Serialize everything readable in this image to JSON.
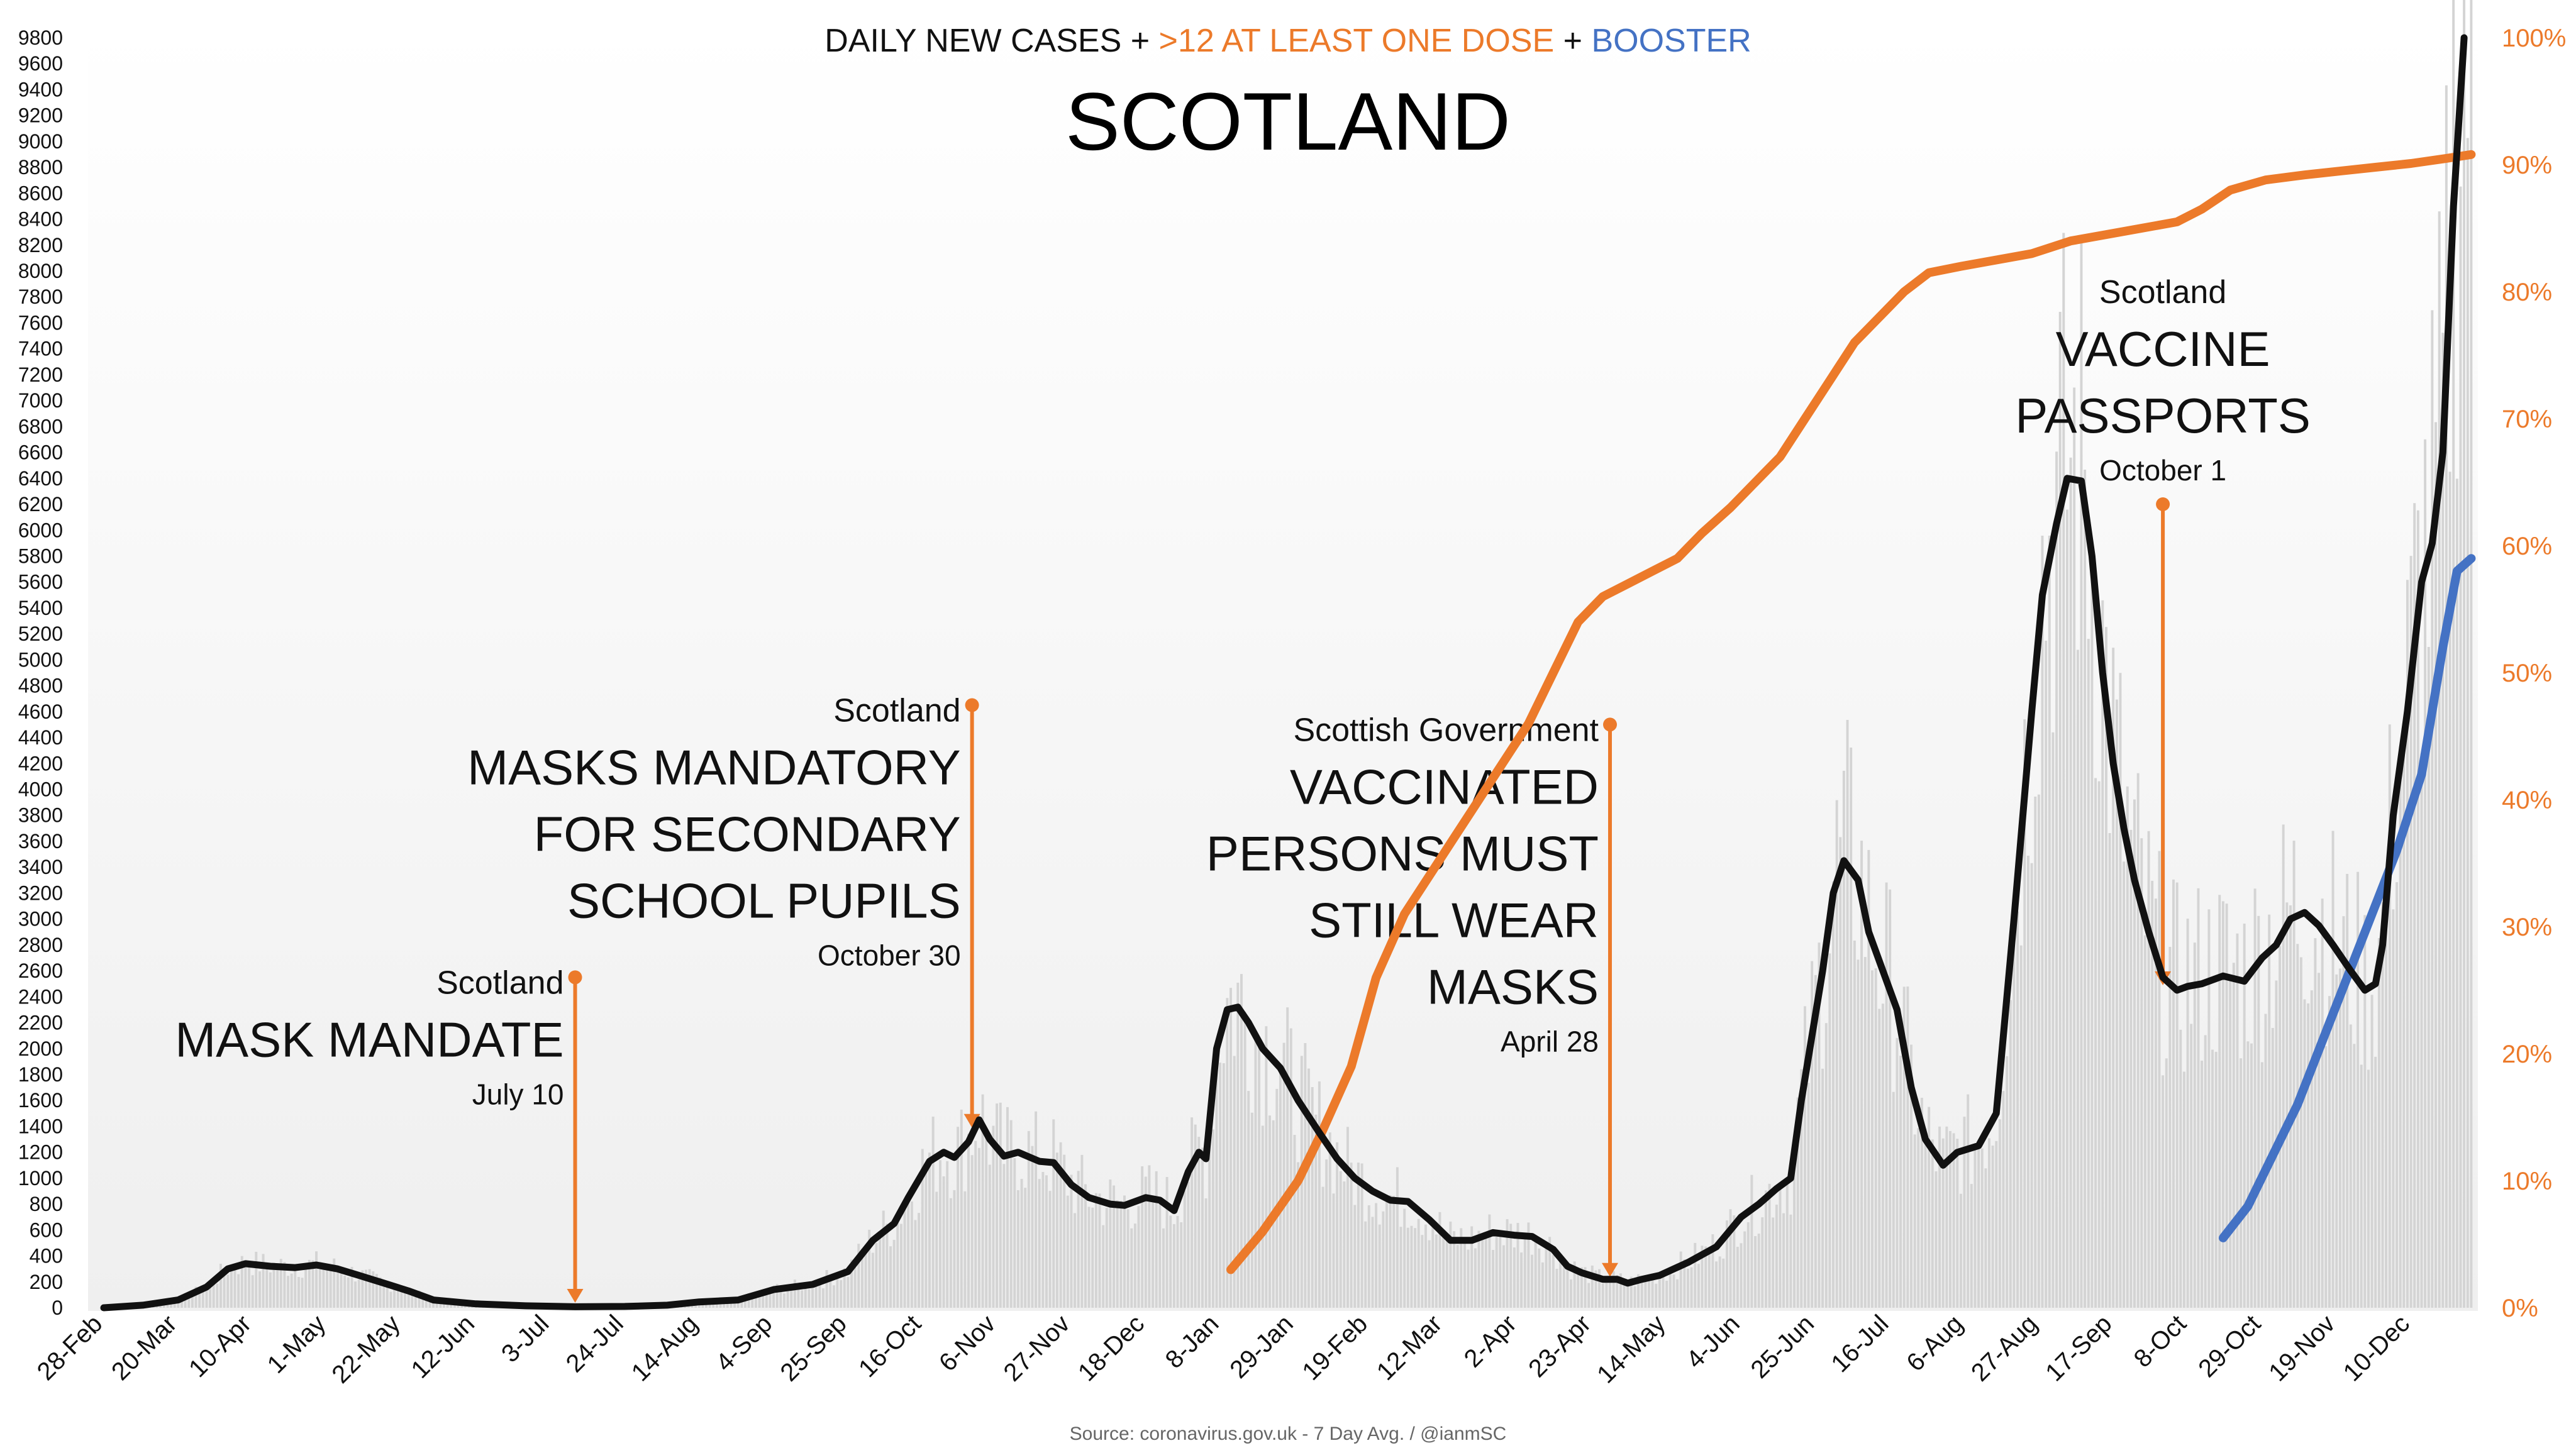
{
  "header": {
    "subtitle_parts": [
      {
        "text": "DAILY NEW CASES + ",
        "color": "#111111"
      },
      {
        "text": ">12 AT LEAST ONE DOSE",
        "color": "#ec7a2a"
      },
      {
        "text": " + ",
        "color": "#111111"
      },
      {
        "text": "BOOSTER",
        "color": "#4472c4"
      }
    ],
    "title": "SCOTLAND"
  },
  "source": "Source: coronavirus.gov.uk - 7 Day Avg. / @ianmSC",
  "colors": {
    "cases": "#111111",
    "first_dose": "#ec7a2a",
    "booster": "#4472c4",
    "daily_bars": "#d4d4d4",
    "annotation": "#ec7a2a",
    "right_axis_text": "#ec7a2a",
    "background_top": "#ffffff",
    "background_bottom": "#efefef"
  },
  "annotations": [
    {
      "source": "Scotland",
      "lines": [
        "MASK MANDATE"
      ],
      "date": "July 10",
      "x": "2020-07-10",
      "pointer_top": 2550,
      "pointer_bottom": 0
    },
    {
      "source": "Scotland",
      "lines": [
        "MASKS MANDATORY",
        "FOR SECONDARY",
        "SCHOOL PUPILS"
      ],
      "date": "October 30",
      "x": "2020-10-30",
      "pointer_top": 4650,
      "pointer_bottom": 1350
    },
    {
      "source": "Scottish Government",
      "lines": [
        "VACCINATED",
        "PERSONS MUST",
        "STILL WEAR",
        "MASKS"
      ],
      "date": "April 28",
      "x": "2021-04-28",
      "pointer_top": 4500,
      "pointer_bottom": 200
    },
    {
      "source": "Scotland",
      "lines": [
        "VACCINE",
        "PASSPORTS"
      ],
      "date": "October 1",
      "x": "2021-10-01",
      "pointer_top": 6200,
      "pointer_bottom": 2450
    }
  ],
  "chart_data": {
    "type": "line",
    "x_axis": {
      "tick_labels": [
        "28-Feb",
        "20-Mar",
        "10-Apr",
        "1-May",
        "22-May",
        "12-Jun",
        "3-Jul",
        "24-Jul",
        "14-Aug",
        "4-Sep",
        "25-Sep",
        "16-Oct",
        "6-Nov",
        "27-Nov",
        "18-Dec",
        "8-Jan",
        "29-Jan",
        "19-Feb",
        "12-Mar",
        "2-Apr",
        "23-Apr",
        "14-May",
        "4-Jun",
        "25-Jun",
        "16-Jul",
        "6-Aug",
        "27-Aug",
        "17-Sep",
        "8-Oct",
        "29-Oct",
        "19-Nov",
        "10-Dec"
      ],
      "tick_dates": [
        "2020-02-28",
        "2020-03-20",
        "2020-04-10",
        "2020-05-01",
        "2020-05-22",
        "2020-06-12",
        "2020-07-03",
        "2020-07-24",
        "2020-08-14",
        "2020-09-04",
        "2020-09-25",
        "2020-10-16",
        "2020-11-06",
        "2020-11-27",
        "2020-12-18",
        "2021-01-08",
        "2021-01-29",
        "2021-02-19",
        "2021-03-12",
        "2021-04-02",
        "2021-04-23",
        "2021-05-14",
        "2021-06-04",
        "2021-06-25",
        "2021-07-16",
        "2021-08-06",
        "2021-08-27",
        "2021-09-17",
        "2021-10-08",
        "2021-10-29",
        "2021-11-19",
        "2021-12-10"
      ],
      "range": [
        "2020-02-28",
        "2021-12-28"
      ]
    },
    "y_left": {
      "ylim": [
        0,
        9800
      ],
      "ticks": [
        0,
        200,
        400,
        600,
        800,
        1000,
        1200,
        1400,
        1600,
        1800,
        2000,
        2200,
        2400,
        2600,
        2800,
        3000,
        3200,
        3400,
        3600,
        3800,
        4000,
        4200,
        4400,
        4600,
        4800,
        5000,
        5200,
        5400,
        5600,
        5800,
        6000,
        6200,
        6400,
        6600,
        6800,
        7000,
        7200,
        7400,
        7600,
        7800,
        8000,
        8200,
        8400,
        8600,
        8800,
        9000,
        9200,
        9400,
        9600,
        9800
      ]
    },
    "y_right": {
      "ylim": [
        0,
        100
      ],
      "ticks": [
        0,
        10,
        20,
        30,
        40,
        50,
        60,
        70,
        80,
        90,
        100
      ],
      "tick_labels": [
        "0%",
        "10%",
        "20%",
        "30%",
        "40%",
        "50%",
        "60%",
        "70%",
        "80%",
        "90%",
        "100%"
      ]
    },
    "series": [
      {
        "key": "cases",
        "axis": "left",
        "values": [
          [
            "2020-02-28",
            0
          ],
          [
            "2020-03-10",
            20
          ],
          [
            "2020-03-20",
            60
          ],
          [
            "2020-03-28",
            160
          ],
          [
            "2020-04-03",
            300
          ],
          [
            "2020-04-08",
            340
          ],
          [
            "2020-04-15",
            320
          ],
          [
            "2020-04-22",
            310
          ],
          [
            "2020-04-28",
            330
          ],
          [
            "2020-05-04",
            300
          ],
          [
            "2020-05-10",
            250
          ],
          [
            "2020-05-17",
            190
          ],
          [
            "2020-05-24",
            130
          ],
          [
            "2020-05-31",
            60
          ],
          [
            "2020-06-12",
            30
          ],
          [
            "2020-06-26",
            15
          ],
          [
            "2020-07-10",
            8
          ],
          [
            "2020-07-24",
            10
          ],
          [
            "2020-08-05",
            20
          ],
          [
            "2020-08-14",
            45
          ],
          [
            "2020-08-25",
            60
          ],
          [
            "2020-09-04",
            140
          ],
          [
            "2020-09-15",
            180
          ],
          [
            "2020-09-25",
            280
          ],
          [
            "2020-10-02",
            520
          ],
          [
            "2020-10-08",
            650
          ],
          [
            "2020-10-12",
            850
          ],
          [
            "2020-10-18",
            1130
          ],
          [
            "2020-10-22",
            1200
          ],
          [
            "2020-10-25",
            1160
          ],
          [
            "2020-10-29",
            1280
          ],
          [
            "2020-11-01",
            1450
          ],
          [
            "2020-11-04",
            1300
          ],
          [
            "2020-11-08",
            1170
          ],
          [
            "2020-11-12",
            1200
          ],
          [
            "2020-11-18",
            1130
          ],
          [
            "2020-11-22",
            1120
          ],
          [
            "2020-11-27",
            950
          ],
          [
            "2020-12-02",
            850
          ],
          [
            "2020-12-08",
            800
          ],
          [
            "2020-12-12",
            790
          ],
          [
            "2020-12-18",
            850
          ],
          [
            "2020-12-22",
            830
          ],
          [
            "2020-12-26",
            750
          ],
          [
            "2020-12-30",
            1050
          ],
          [
            "2021-01-02",
            1200
          ],
          [
            "2021-01-04",
            1150
          ],
          [
            "2021-01-07",
            2000
          ],
          [
            "2021-01-10",
            2300
          ],
          [
            "2021-01-13",
            2320
          ],
          [
            "2021-01-16",
            2200
          ],
          [
            "2021-01-20",
            2000
          ],
          [
            "2021-01-25",
            1850
          ],
          [
            "2021-01-30",
            1600
          ],
          [
            "2021-02-05",
            1350
          ],
          [
            "2021-02-10",
            1150
          ],
          [
            "2021-02-15",
            1000
          ],
          [
            "2021-02-20",
            900
          ],
          [
            "2021-02-25",
            830
          ],
          [
            "2021-03-02",
            820
          ],
          [
            "2021-03-08",
            680
          ],
          [
            "2021-03-14",
            520
          ],
          [
            "2021-03-20",
            520
          ],
          [
            "2021-03-26",
            580
          ],
          [
            "2021-04-01",
            560
          ],
          [
            "2021-04-06",
            550
          ],
          [
            "2021-04-12",
            450
          ],
          [
            "2021-04-16",
            320
          ],
          [
            "2021-04-20",
            270
          ],
          [
            "2021-04-26",
            220
          ],
          [
            "2021-04-30",
            220
          ],
          [
            "2021-05-03",
            190
          ],
          [
            "2021-05-07",
            220
          ],
          [
            "2021-05-12",
            250
          ],
          [
            "2021-05-20",
            350
          ],
          [
            "2021-05-28",
            470
          ],
          [
            "2021-06-04",
            700
          ],
          [
            "2021-06-09",
            800
          ],
          [
            "2021-06-14",
            920
          ],
          [
            "2021-06-18",
            1000
          ],
          [
            "2021-06-21",
            1600
          ],
          [
            "2021-06-24",
            2100
          ],
          [
            "2021-06-27",
            2600
          ],
          [
            "2021-06-30",
            3200
          ],
          [
            "2021-07-03",
            3450
          ],
          [
            "2021-07-07",
            3300
          ],
          [
            "2021-07-10",
            2900
          ],
          [
            "2021-07-14",
            2600
          ],
          [
            "2021-07-18",
            2300
          ],
          [
            "2021-07-22",
            1700
          ],
          [
            "2021-07-26",
            1300
          ],
          [
            "2021-07-31",
            1100
          ],
          [
            "2021-08-04",
            1200
          ],
          [
            "2021-08-10",
            1250
          ],
          [
            "2021-08-15",
            1500
          ],
          [
            "2021-08-20",
            3000
          ],
          [
            "2021-08-25",
            4600
          ],
          [
            "2021-08-28",
            5500
          ],
          [
            "2021-09-01",
            6050
          ],
          [
            "2021-09-04",
            6400
          ],
          [
            "2021-09-08",
            6380
          ],
          [
            "2021-09-11",
            5800
          ],
          [
            "2021-09-14",
            4900
          ],
          [
            "2021-09-17",
            4200
          ],
          [
            "2021-09-20",
            3700
          ],
          [
            "2021-09-23",
            3300
          ],
          [
            "2021-09-27",
            2900
          ],
          [
            "2021-10-01",
            2550
          ],
          [
            "2021-10-05",
            2450
          ],
          [
            "2021-10-08",
            2480
          ],
          [
            "2021-10-12",
            2500
          ],
          [
            "2021-10-18",
            2560
          ],
          [
            "2021-10-24",
            2520
          ],
          [
            "2021-10-29",
            2700
          ],
          [
            "2021-11-02",
            2800
          ],
          [
            "2021-11-06",
            3000
          ],
          [
            "2021-11-10",
            3050
          ],
          [
            "2021-11-14",
            2950
          ],
          [
            "2021-11-18",
            2800
          ],
          [
            "2021-11-23",
            2600
          ],
          [
            "2021-11-27",
            2450
          ],
          [
            "2021-11-30",
            2500
          ],
          [
            "2021-12-02",
            2800
          ],
          [
            "2021-12-05",
            3800
          ],
          [
            "2021-12-09",
            4600
          ],
          [
            "2021-12-13",
            5600
          ],
          [
            "2021-12-16",
            5900
          ],
          [
            "2021-12-19",
            6600
          ],
          [
            "2021-12-22",
            8500
          ],
          [
            "2021-12-25",
            9800
          ]
        ]
      },
      {
        "key": "first_dose",
        "axis": "right",
        "values": [
          [
            "2021-01-11",
            3
          ],
          [
            "2021-01-20",
            6
          ],
          [
            "2021-01-30",
            10
          ],
          [
            "2021-02-06",
            14
          ],
          [
            "2021-02-14",
            19
          ],
          [
            "2021-02-21",
            26
          ],
          [
            "2021-03-01",
            31
          ],
          [
            "2021-03-08",
            34
          ],
          [
            "2021-03-15",
            37
          ],
          [
            "2021-03-22",
            40
          ],
          [
            "2021-03-29",
            43
          ],
          [
            "2021-04-05",
            46
          ],
          [
            "2021-04-12",
            50
          ],
          [
            "2021-04-19",
            54
          ],
          [
            "2021-04-26",
            56
          ],
          [
            "2021-05-03",
            57
          ],
          [
            "2021-05-10",
            58
          ],
          [
            "2021-05-17",
            59
          ],
          [
            "2021-05-24",
            61
          ],
          [
            "2021-06-01",
            63
          ],
          [
            "2021-06-08",
            65
          ],
          [
            "2021-06-15",
            67
          ],
          [
            "2021-06-22",
            70
          ],
          [
            "2021-06-29",
            73
          ],
          [
            "2021-07-06",
            76
          ],
          [
            "2021-07-13",
            78
          ],
          [
            "2021-07-20",
            80
          ],
          [
            "2021-07-27",
            81.5
          ],
          [
            "2021-08-05",
            82
          ],
          [
            "2021-08-15",
            82.5
          ],
          [
            "2021-08-25",
            83
          ],
          [
            "2021-09-05",
            84
          ],
          [
            "2021-09-15",
            84.5
          ],
          [
            "2021-09-25",
            85
          ],
          [
            "2021-10-05",
            85.5
          ],
          [
            "2021-10-12",
            86.5
          ],
          [
            "2021-10-20",
            88
          ],
          [
            "2021-10-30",
            88.8
          ],
          [
            "2021-11-10",
            89.2
          ],
          [
            "2021-11-20",
            89.5
          ],
          [
            "2021-11-30",
            89.8
          ],
          [
            "2021-12-10",
            90.1
          ],
          [
            "2021-12-20",
            90.5
          ],
          [
            "2021-12-27",
            90.8
          ]
        ]
      },
      {
        "key": "booster",
        "axis": "right",
        "values": [
          [
            "2021-10-18",
            5.5
          ],
          [
            "2021-10-25",
            8
          ],
          [
            "2021-11-01",
            12
          ],
          [
            "2021-11-08",
            16
          ],
          [
            "2021-11-15",
            21
          ],
          [
            "2021-11-22",
            26
          ],
          [
            "2021-11-29",
            31
          ],
          [
            "2021-12-06",
            36
          ],
          [
            "2021-12-13",
            42
          ],
          [
            "2021-12-19",
            52
          ],
          [
            "2021-12-23",
            58
          ],
          [
            "2021-12-27",
            59
          ]
        ]
      }
    ]
  }
}
